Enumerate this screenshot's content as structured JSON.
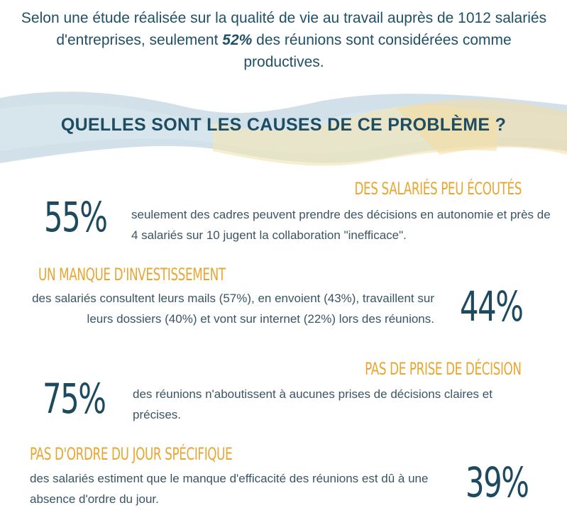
{
  "intro": {
    "before": "Selon une étude réalisée sur la qualité de vie au travail auprès de 1012 salariés d'entreprises, seulement ",
    "highlight": "52%",
    "after": " des réunions sont considérées comme productives."
  },
  "question": "QUELLES SONT LES CAUSES DE CE PROBLÈME ?",
  "colors": {
    "accent": "#e8a631",
    "dark": "#1d4a5e",
    "brush_blue": "#bcd3df",
    "brush_yellow": "#f3e6b6"
  },
  "causes": [
    {
      "title": "DES SALARIÉS PEU ÉCOUTÉS",
      "percent": "55%",
      "desc": "seulement des cadres peuvent prendre des décisions en autonomie et près de 4 salariés sur 10 jugent la collaboration \"inefficace\"."
    },
    {
      "title": "UN MANQUE D'INVESTISSEMENT",
      "percent": "44%",
      "desc": "des salariés consultent leurs mails (57%), en envoient (43%), travaillent sur leurs dossiers (40%) et vont sur internet (22%) lors des réunions."
    },
    {
      "title": "PAS DE PRISE DE DÉCISION",
      "percent": "75%",
      "desc": "des réunions n'aboutissent à aucunes prises de décisions claires et précises."
    },
    {
      "title": "PAS D'ORDRE DU JOUR SPÉCIFIQUE",
      "percent": "39%",
      "desc": "des salariés estiment que le manque d'efficacité des réunions est dû à une absence d'ordre du jour."
    }
  ]
}
